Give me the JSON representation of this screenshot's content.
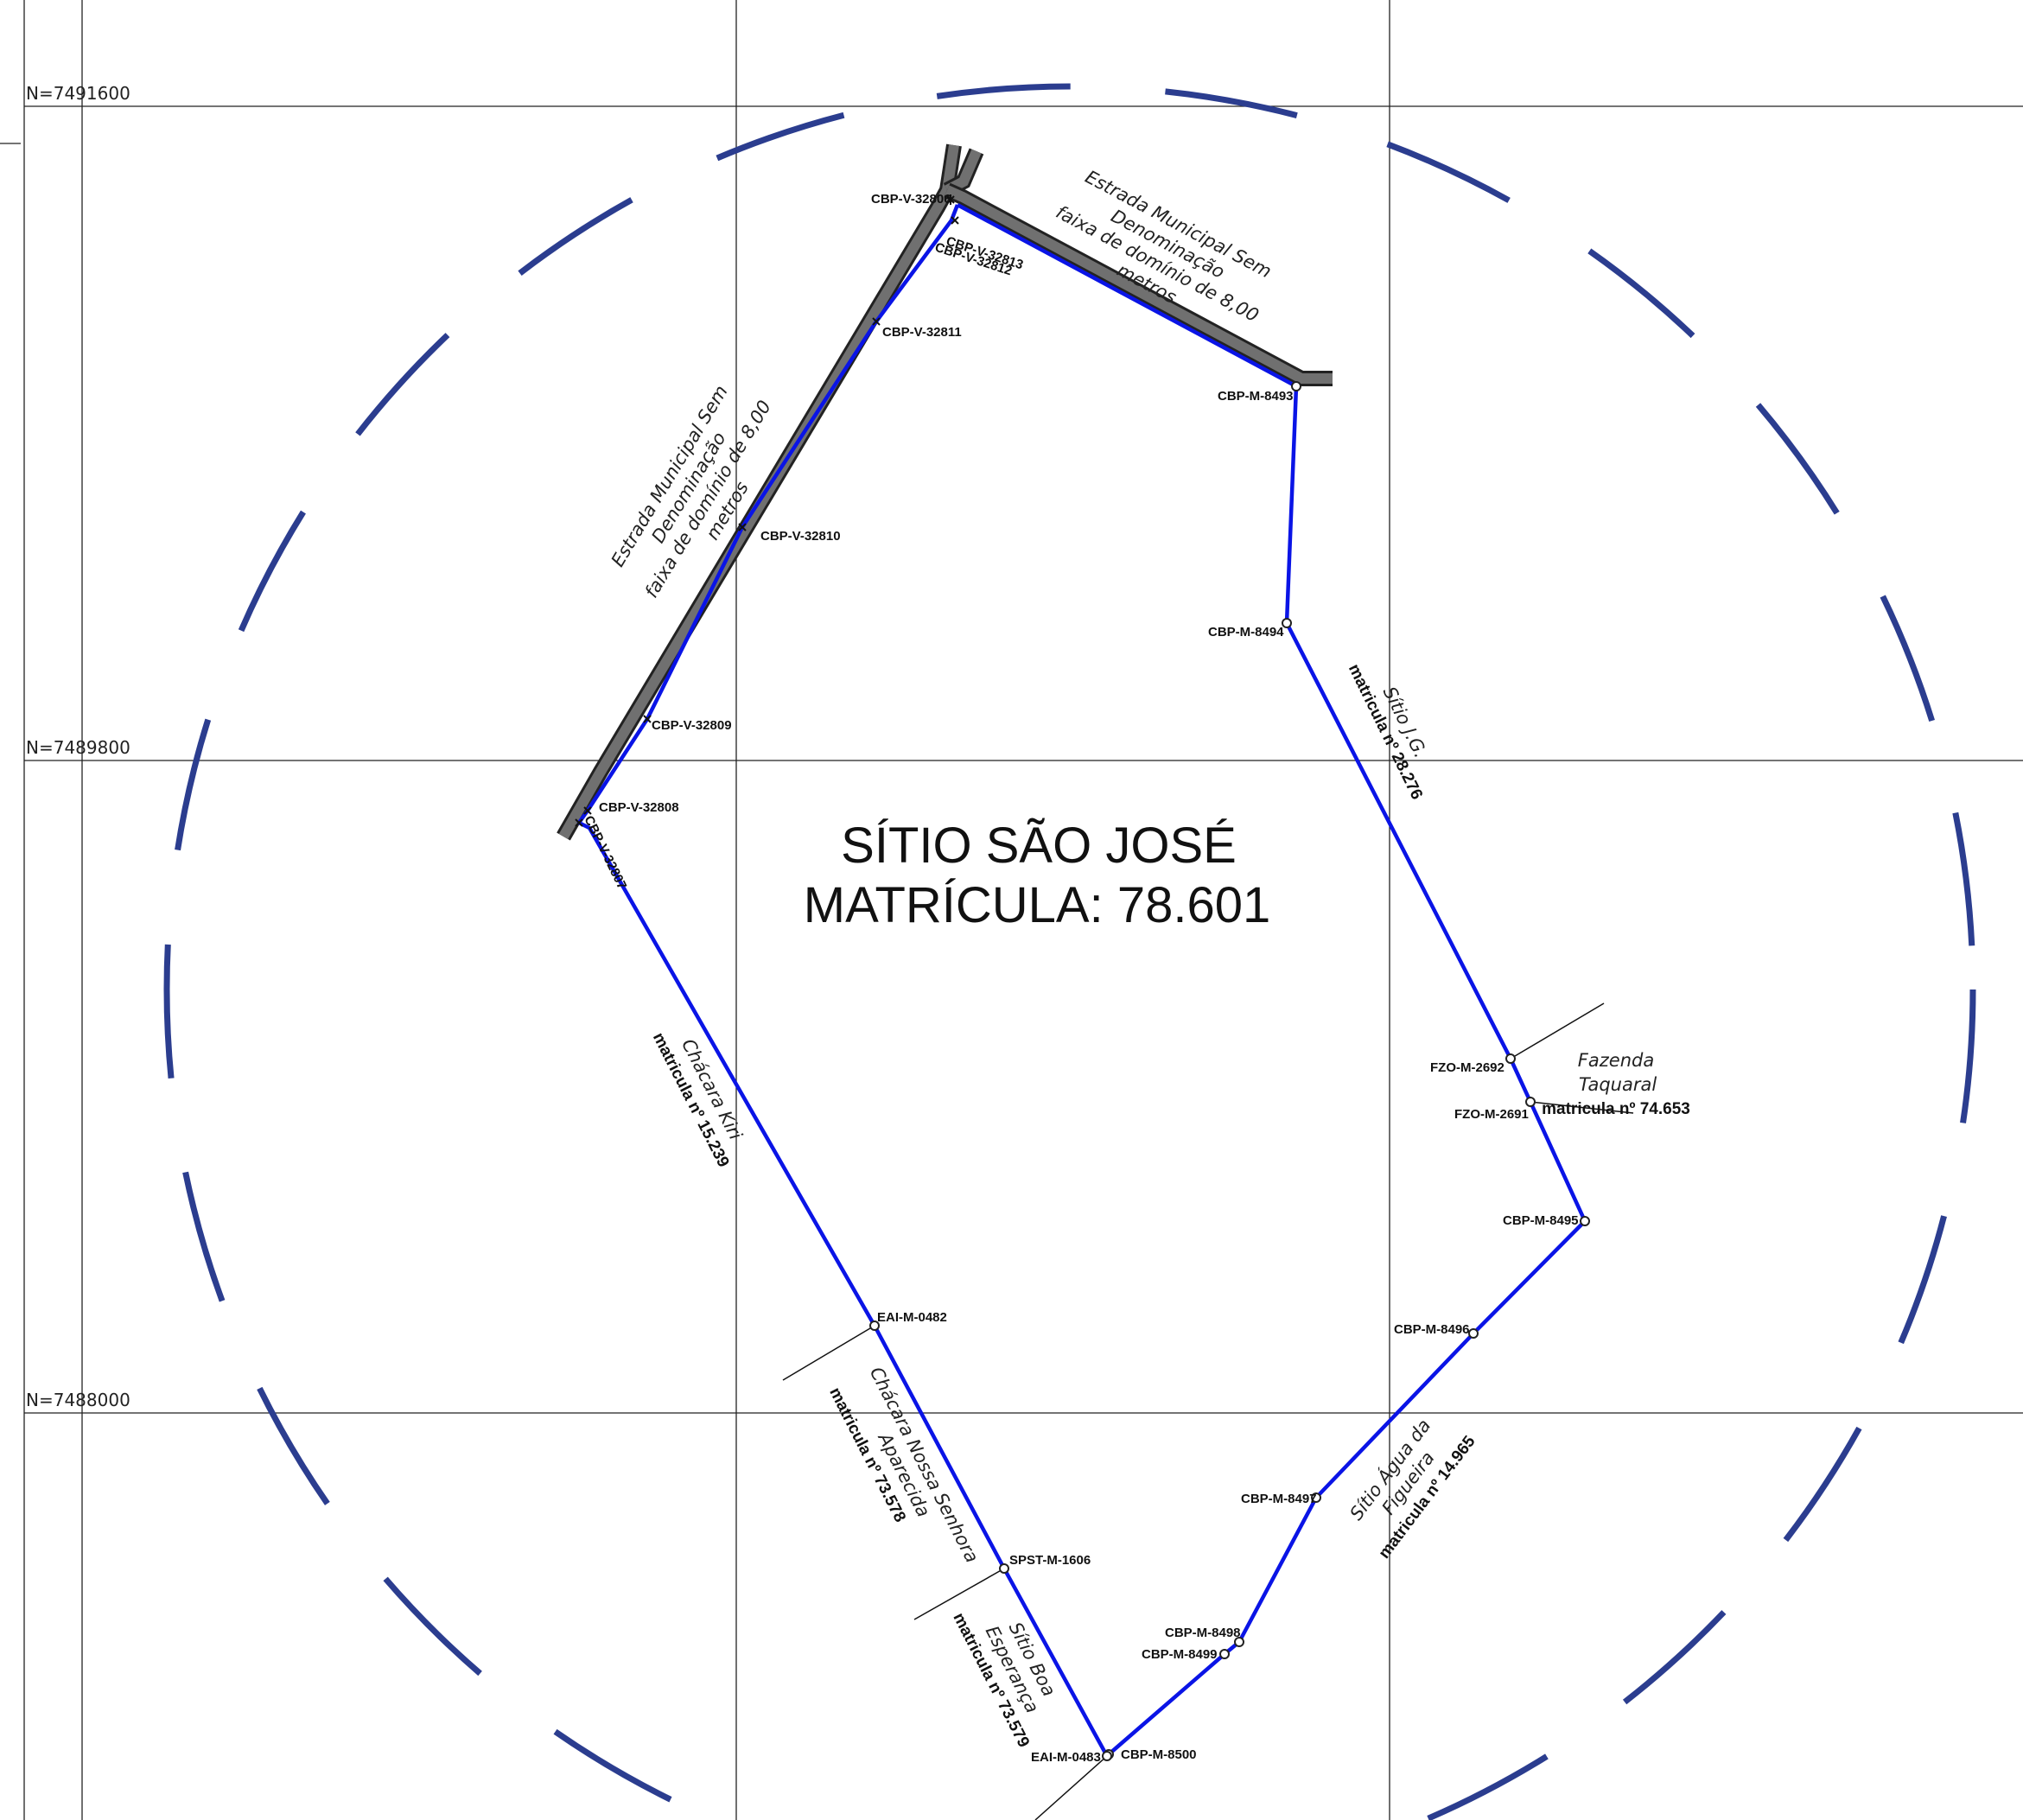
{
  "title": {
    "name": "SÍTIO SÃO JOSÉ",
    "registration": "MATRÍCULA: 78.601"
  },
  "grid_labels": [
    "N=7491600",
    "N=7489800",
    "N=7488000"
  ],
  "vertices": [
    "CBP-V-32806",
    "CBP-V-32813",
    "CBP-V-32812",
    "CBP-V-32811",
    "CBP-V-32810",
    "CBP-V-32809",
    "CBP-V-32808",
    "CBP-V-32807",
    "CBP-M-8493",
    "CBP-M-8494",
    "FZO-M-2692",
    "FZO-M-2691",
    "CBP-M-8495",
    "CBP-M-8496",
    "CBP-M-8497",
    "CBP-M-8498",
    "CBP-M-8499",
    "CBP-M-8500",
    "EAI-M-0483",
    "SPST-M-1606",
    "EAI-M-0482"
  ],
  "roads": {
    "north": [
      "Estrada Municipal Sem",
      "Denominação",
      "faixa de domínio de 8,00",
      "metros"
    ],
    "west": [
      "Estrada Municipal Sem",
      "Denominação",
      "faixa de domínio de 8,00",
      "metros"
    ]
  },
  "neighbors": {
    "sitio_jg": {
      "name": "Sítio J.G.",
      "matricula": "matricula nº 28.276"
    },
    "fazenda_taquaral": {
      "name_line1": "Fazenda",
      "name_line2": "Taquaral",
      "matricula": "matricula nº 74.653"
    },
    "sitio_agua_figueira": {
      "name_line1": "Sítio Água da",
      "name_line2": "Figueira",
      "matricula": "matricula nº 14.965"
    },
    "sitio_boa_esperanca": {
      "name_line1": "Sítio Boa",
      "name_line2": "Esperança",
      "matricula": "matricula nº 73.579"
    },
    "chacara_nossa_senhora": {
      "name_line1": "Chácara Nossa Senhora",
      "name_line2": "Aparecida",
      "matricula": "matricula nº 73.578"
    },
    "chacara_kiri": {
      "name": "Chácara Kiri",
      "matricula": "matricula nº 15.239"
    }
  },
  "colors": {
    "boundary": "#0a14e6",
    "circle": "#2b3d8f",
    "road": "#707070"
  }
}
